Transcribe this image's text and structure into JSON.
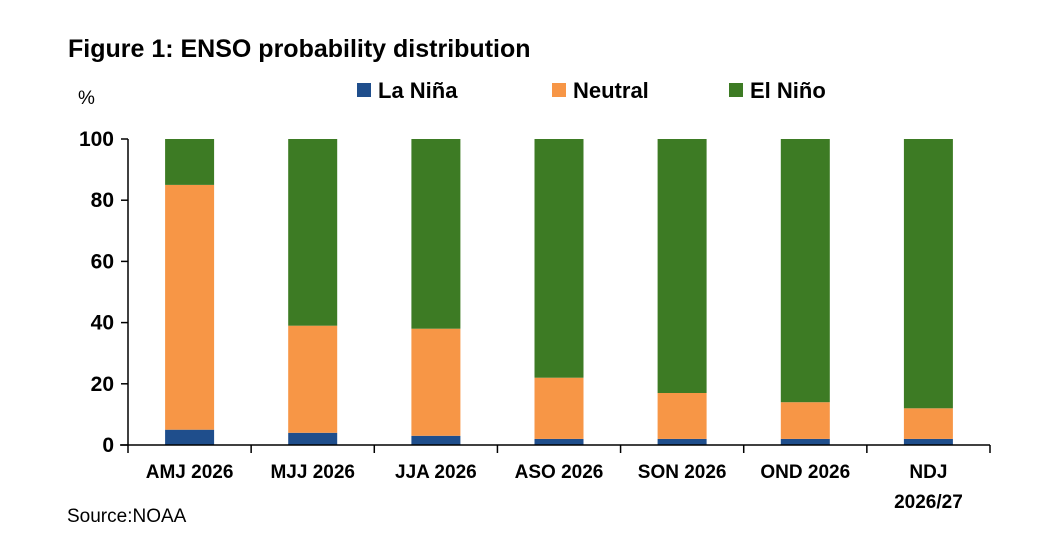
{
  "chart_data": {
    "type": "bar",
    "stacked": true,
    "title": "Figure 1: ENSO probability distribution",
    "ylabel": "%",
    "xlabel": "",
    "ylim": [
      0,
      100
    ],
    "yticks": [
      0,
      20,
      40,
      60,
      80,
      100
    ],
    "grid": false,
    "legend_position": "top",
    "categories": [
      [
        "AMJ 2026"
      ],
      [
        "MJJ 2026"
      ],
      [
        "JJA 2026"
      ],
      [
        "ASO 2026"
      ],
      [
        "SON 2026"
      ],
      [
        "OND 2026"
      ],
      [
        "NDJ",
        "2026/27"
      ]
    ],
    "series": [
      {
        "name": "La Niña",
        "color": "#1f4e8c",
        "values": [
          5,
          4,
          3,
          2,
          2,
          2,
          2
        ]
      },
      {
        "name": "Neutral",
        "color": "#f79646",
        "values": [
          80,
          35,
          35,
          20,
          15,
          12,
          10
        ]
      },
      {
        "name": "El Niño",
        "color": "#3d7b24",
        "values": [
          15,
          61,
          62,
          78,
          83,
          86,
          88
        ]
      }
    ],
    "source": "Source:NOAA"
  }
}
